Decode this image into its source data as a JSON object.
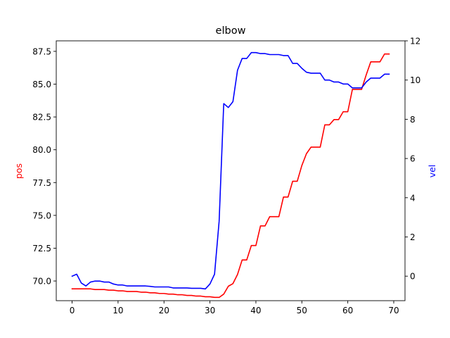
{
  "chart_data": {
    "type": "line",
    "title": "elbow",
    "xlabel": "",
    "ylabel_left": "pos",
    "ylabel_right": "vel",
    "xlim": [
      -3.45,
      72.45
    ],
    "ylim_left": [
      68.5,
      88.3
    ],
    "ylim_right": [
      -1.25,
      12.0
    ],
    "x_ticks": [
      0,
      10,
      20,
      30,
      40,
      50,
      60,
      70
    ],
    "y_ticks_left": [
      70.0,
      72.5,
      75.0,
      77.5,
      80.0,
      82.5,
      85.0,
      87.5
    ],
    "y_tick_labels_left": [
      "70.0",
      "72.5",
      "75.0",
      "77.5",
      "80.0",
      "82.5",
      "85.0",
      "87.5"
    ],
    "y_ticks_right": [
      0,
      2,
      4,
      6,
      8,
      10,
      12
    ],
    "grid": false,
    "legend": "none",
    "x": [
      0,
      1,
      2,
      3,
      4,
      5,
      6,
      7,
      8,
      9,
      10,
      11,
      12,
      13,
      14,
      15,
      16,
      17,
      18,
      19,
      20,
      21,
      22,
      23,
      24,
      25,
      26,
      27,
      28,
      29,
      30,
      31,
      32,
      33,
      34,
      35,
      36,
      37,
      38,
      39,
      40,
      41,
      42,
      43,
      44,
      45,
      46,
      47,
      48,
      49,
      50,
      51,
      52,
      53,
      54,
      55,
      56,
      57,
      58,
      59,
      60,
      61,
      62,
      63,
      64,
      65,
      66,
      67,
      68,
      69
    ],
    "series": [
      {
        "name": "pos",
        "axis": "left",
        "color": "#ff0000",
        "values": [
          69.4,
          69.4,
          69.4,
          69.4,
          69.4,
          69.35,
          69.35,
          69.35,
          69.3,
          69.3,
          69.25,
          69.25,
          69.2,
          69.2,
          69.2,
          69.15,
          69.15,
          69.1,
          69.1,
          69.05,
          69.05,
          69.0,
          69.0,
          68.95,
          68.95,
          68.9,
          68.9,
          68.85,
          68.85,
          68.8,
          68.8,
          68.75,
          68.75,
          69.0,
          69.6,
          69.8,
          70.5,
          71.6,
          71.6,
          72.7,
          72.7,
          74.2,
          74.2,
          74.9,
          74.9,
          74.9,
          76.4,
          76.4,
          77.6,
          77.6,
          78.8,
          79.7,
          80.2,
          80.2,
          80.2,
          81.9,
          81.9,
          82.3,
          82.3,
          82.9,
          82.9,
          84.6,
          84.6,
          84.6,
          85.7,
          86.7,
          86.7,
          86.7,
          87.3,
          87.3
        ]
      },
      {
        "name": "vel",
        "axis": "right",
        "color": "#0000ff",
        "values": [
          0.0,
          0.1,
          -0.35,
          -0.5,
          -0.3,
          -0.25,
          -0.25,
          -0.3,
          -0.3,
          -0.4,
          -0.45,
          -0.45,
          -0.5,
          -0.5,
          -0.5,
          -0.5,
          -0.5,
          -0.52,
          -0.55,
          -0.55,
          -0.55,
          -0.55,
          -0.6,
          -0.6,
          -0.6,
          -0.6,
          -0.62,
          -0.62,
          -0.62,
          -0.65,
          -0.4,
          0.1,
          2.8,
          8.8,
          8.6,
          8.9,
          10.5,
          11.1,
          11.1,
          11.4,
          11.4,
          11.35,
          11.35,
          11.3,
          11.3,
          11.3,
          11.25,
          11.25,
          10.85,
          10.85,
          10.6,
          10.4,
          10.35,
          10.35,
          10.35,
          10.0,
          10.0,
          9.9,
          9.9,
          9.8,
          9.8,
          9.6,
          9.6,
          9.6,
          9.9,
          10.1,
          10.1,
          10.1,
          10.3,
          10.3
        ]
      }
    ]
  }
}
